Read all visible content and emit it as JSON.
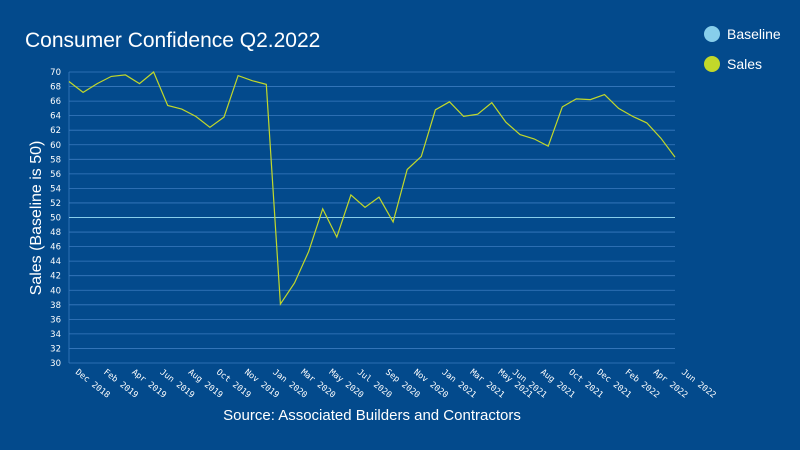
{
  "chart_data": {
    "type": "line",
    "title": "Consumer Confidence Q2.2022",
    "ylabel": "Sales (Baseline is 50)",
    "source": "Source: Associated Builders and Contractors",
    "ylim": [
      30,
      70
    ],
    "yticks": [
      30,
      32,
      34,
      36,
      38,
      40,
      42,
      44,
      46,
      48,
      50,
      52,
      54,
      56,
      58,
      60,
      62,
      64,
      66,
      68,
      70
    ],
    "x": [
      "Dec 2018",
      "Jan 2019",
      "Feb 2019",
      "Mar 2019",
      "Apr 2019",
      "May 2019",
      "Jun 2019",
      "Jul 2019",
      "Aug 2019",
      "Sep 2019",
      "Oct 2019",
      "Oct 2019",
      "Nov 2019",
      "Dec 2019",
      "Jan 2020",
      "Feb 2020",
      "Mar 2020",
      "Apr 2020",
      "May 2020",
      "Jun 2020",
      "Jul 2020",
      "Aug 2020",
      "Sep 2020",
      "Oct 2020",
      "Nov 2020",
      "Dec 2020",
      "Jan 2021",
      "Feb 2021",
      "Mar 2021",
      "Apr 2021",
      "May 2021",
      "Jun 2021",
      "Jul 2021",
      "Aug 2021",
      "Sep 2021",
      "Oct 2021",
      "Nov 2021",
      "Dec 2021",
      "Jan 2022",
      "Feb 2022",
      "Mar 2022",
      "Apr 2022",
      "May 2022",
      "Jun 2022"
    ],
    "xtick_labels": [
      "Dec 2018",
      "Feb 2019",
      "Apr 2019",
      "Jun 2019",
      "Aug 2019",
      "Oct 2019",
      "Nov 2019",
      "Jan 2020",
      "Mar 2020",
      "May 2020",
      "Jul 2020",
      "Sep 2020",
      "Nov 2020",
      "Jan 2021",
      "Mar 2021",
      "May 2021",
      "Jun 2021",
      "Aug 2021",
      "Oct 2021",
      "Dec 2021",
      "Feb 2022",
      "Apr 2022",
      "Jun 2022"
    ],
    "xtick_indices": [
      0,
      2,
      4,
      6,
      8,
      10,
      12,
      14,
      16,
      18,
      20,
      22,
      24,
      26,
      28,
      30,
      31,
      33,
      35,
      37,
      39,
      41,
      43
    ],
    "series": [
      {
        "name": "Baseline",
        "color": "#87ceeb",
        "values": [
          50,
          50,
          50,
          50,
          50,
          50,
          50,
          50,
          50,
          50,
          50,
          50,
          50,
          50,
          50,
          50,
          50,
          50,
          50,
          50,
          50,
          50,
          50,
          50,
          50,
          50,
          50,
          50,
          50,
          50,
          50,
          50,
          50,
          50,
          50,
          50,
          50,
          50,
          50,
          50,
          50,
          50,
          50,
          50
        ]
      },
      {
        "name": "Sales",
        "color": "#c2d82a",
        "values": [
          68.7,
          67.2,
          68.4,
          69.4,
          69.6,
          68.4,
          70.0,
          65.4,
          64.9,
          63.9,
          62.4,
          63.8,
          69.5,
          68.8,
          68.3,
          38.1,
          41.0,
          45.3,
          51.2,
          47.3,
          53.1,
          51.4,
          52.8,
          49.4,
          56.6,
          58.4,
          64.8,
          65.9,
          63.9,
          64.2,
          65.8,
          63.1,
          61.4,
          60.8,
          59.8,
          65.2,
          66.3,
          66.2,
          66.9,
          65.0,
          63.9,
          63.0,
          60.9,
          58.3
        ]
      }
    ],
    "grid": true,
    "legend": "top-right"
  },
  "colors": {
    "background": "#034a8c",
    "grid": "#3a7abf",
    "text": "#ffffff"
  }
}
